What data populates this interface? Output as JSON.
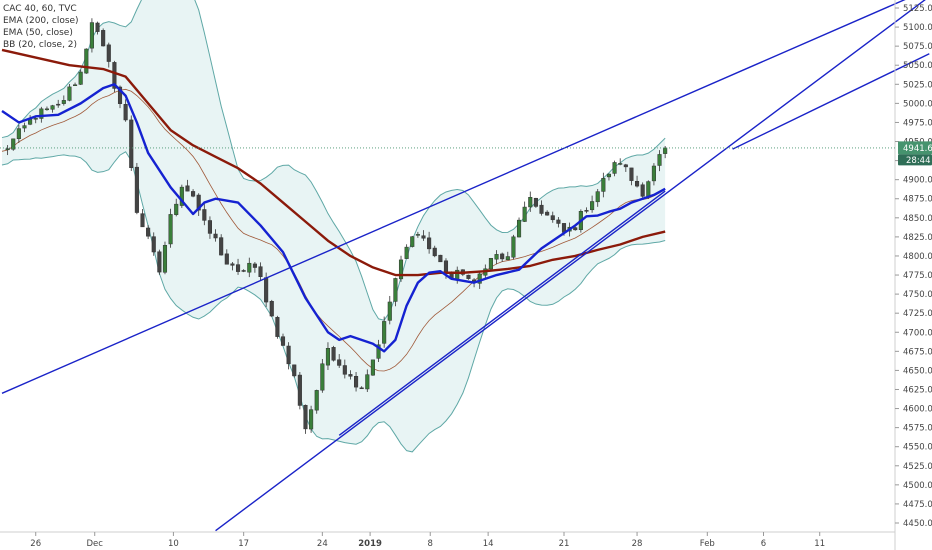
{
  "legend": {
    "title": "CAC 40, 60, TVC",
    "ema200": "EMA (200, close)",
    "ema50": "EMA (50, close)",
    "bb": "BB (20, close, 2)"
  },
  "price_tag": {
    "value": "4941.6",
    "timer": "28:44"
  },
  "colors": {
    "up": "#3a7f3a",
    "down": "#555555",
    "ema200": "#8b1a0a",
    "ema50": "#1522d1",
    "bb_line": "#5fa8a6",
    "bb_fill": "#e8f4f4",
    "bb_mid": "#a05a3a",
    "trend": "#1a23c8",
    "tag_bg": "#46936e",
    "timer_bg": "#2f6e57"
  },
  "chart_data": {
    "type": "candlestick",
    "title": "CAC 40, 60, TVC",
    "ylim": [
      4440,
      5135
    ],
    "y_ticks": [
      5125.0,
      5100.0,
      5075.0,
      5050.0,
      5025.0,
      5000.0,
      4975.0,
      4950.0,
      4925.0,
      4900.0,
      4875.0,
      4850.0,
      4825.0,
      4800.0,
      4775.0,
      4750.0,
      4725.0,
      4700.0,
      4675.0,
      4650.0,
      4625.0,
      4600.0,
      4575.0,
      4550.0,
      4525.0,
      4500.0,
      4475.0,
      4450.0
    ],
    "x_ticks": [
      {
        "label": "26",
        "bold": false
      },
      {
        "label": "Dec",
        "bold": false
      },
      {
        "label": "10",
        "bold": false
      },
      {
        "label": "17",
        "bold": false
      },
      {
        "label": "24",
        "bold": false
      },
      {
        "label": "2019",
        "bold": true
      },
      {
        "label": "8",
        "bold": false
      },
      {
        "label": "14",
        "bold": false
      },
      {
        "label": "21",
        "bold": false
      },
      {
        "label": "28",
        "bold": false
      },
      {
        "label": "Feb",
        "bold": false
      },
      {
        "label": "6",
        "bold": false
      },
      {
        "label": "11",
        "bold": false
      }
    ],
    "close_path": [
      [
        0,
        4935
      ],
      [
        3,
        4960
      ],
      [
        6,
        4985
      ],
      [
        10,
        4995
      ],
      [
        14,
        5040
      ],
      [
        16,
        5110
      ],
      [
        19,
        5050
      ],
      [
        22,
        4975
      ],
      [
        24,
        4860
      ],
      [
        26,
        4820
      ],
      [
        28,
        4780
      ],
      [
        30,
        4850
      ],
      [
        32,
        4895
      ],
      [
        34,
        4880
      ],
      [
        36,
        4840
      ],
      [
        38,
        4820
      ],
      [
        40,
        4790
      ],
      [
        42,
        4775
      ],
      [
        44,
        4790
      ],
      [
        46,
        4770
      ],
      [
        48,
        4720
      ],
      [
        50,
        4680
      ],
      [
        52,
        4640
      ],
      [
        54,
        4575
      ],
      [
        56,
        4625
      ],
      [
        58,
        4680
      ],
      [
        60,
        4660
      ],
      [
        62,
        4640
      ],
      [
        64,
        4630
      ],
      [
        66,
        4665
      ],
      [
        68,
        4710
      ],
      [
        70,
        4770
      ],
      [
        72,
        4810
      ],
      [
        74,
        4835
      ],
      [
        76,
        4810
      ],
      [
        78,
        4790
      ],
      [
        80,
        4770
      ],
      [
        82,
        4780
      ],
      [
        84,
        4760
      ],
      [
        86,
        4790
      ],
      [
        88,
        4800
      ],
      [
        90,
        4795
      ],
      [
        92,
        4850
      ],
      [
        94,
        4870
      ],
      [
        96,
        4860
      ],
      [
        98,
        4845
      ],
      [
        100,
        4830
      ],
      [
        102,
        4840
      ],
      [
        104,
        4865
      ],
      [
        106,
        4885
      ],
      [
        108,
        4910
      ],
      [
        110,
        4925
      ],
      [
        112,
        4900
      ],
      [
        114,
        4885
      ],
      [
        116,
        4915
      ],
      [
        118,
        4942
      ]
    ],
    "ema200_path": [
      [
        0,
        5070
      ],
      [
        6,
        5060
      ],
      [
        12,
        5050
      ],
      [
        18,
        5045
      ],
      [
        22,
        5035
      ],
      [
        26,
        5000
      ],
      [
        30,
        4965
      ],
      [
        34,
        4945
      ],
      [
        38,
        4930
      ],
      [
        42,
        4915
      ],
      [
        46,
        4895
      ],
      [
        50,
        4870
      ],
      [
        54,
        4845
      ],
      [
        58,
        4820
      ],
      [
        62,
        4800
      ],
      [
        66,
        4785
      ],
      [
        70,
        4775
      ],
      [
        74,
        4775
      ],
      [
        78,
        4778
      ],
      [
        82,
        4778
      ],
      [
        86,
        4780
      ],
      [
        90,
        4783
      ],
      [
        94,
        4787
      ],
      [
        98,
        4795
      ],
      [
        102,
        4800
      ],
      [
        106,
        4808
      ],
      [
        110,
        4815
      ],
      [
        114,
        4825
      ],
      [
        118,
        4832
      ]
    ],
    "ema50_path": [
      [
        0,
        4990
      ],
      [
        3,
        4975
      ],
      [
        6,
        4983
      ],
      [
        10,
        4985
      ],
      [
        14,
        5000
      ],
      [
        18,
        5020
      ],
      [
        20,
        5025
      ],
      [
        22,
        5010
      ],
      [
        24,
        4975
      ],
      [
        26,
        4935
      ],
      [
        30,
        4890
      ],
      [
        34,
        4855
      ],
      [
        36,
        4870
      ],
      [
        38,
        4875
      ],
      [
        42,
        4870
      ],
      [
        46,
        4840
      ],
      [
        50,
        4805
      ],
      [
        54,
        4745
      ],
      [
        58,
        4700
      ],
      [
        60,
        4690
      ],
      [
        62,
        4695
      ],
      [
        66,
        4685
      ],
      [
        68,
        4675
      ],
      [
        70,
        4690
      ],
      [
        72,
        4735
      ],
      [
        74,
        4765
      ],
      [
        76,
        4778
      ],
      [
        78,
        4780
      ],
      [
        80,
        4770
      ],
      [
        84,
        4765
      ],
      [
        88,
        4775
      ],
      [
        92,
        4782
      ],
      [
        96,
        4810
      ],
      [
        100,
        4830
      ],
      [
        102,
        4840
      ],
      [
        104,
        4852
      ],
      [
        106,
        4853
      ],
      [
        108,
        4858
      ],
      [
        110,
        4862
      ],
      [
        112,
        4870
      ],
      [
        114,
        4875
      ],
      [
        116,
        4880
      ],
      [
        118,
        4888
      ]
    ],
    "trendlines": [
      {
        "from": [
          0,
          4620
        ],
        "to": [
          165,
          5150
        ]
      },
      {
        "from": [
          38,
          4440
        ],
        "to": [
          165,
          5140
        ]
      },
      {
        "from": [
          60,
          4565
        ],
        "to": [
          118,
          4885
        ]
      },
      {
        "from": [
          130,
          4940
        ],
        "to": [
          165,
          5065
        ]
      }
    ],
    "last_price": 4941.6
  }
}
